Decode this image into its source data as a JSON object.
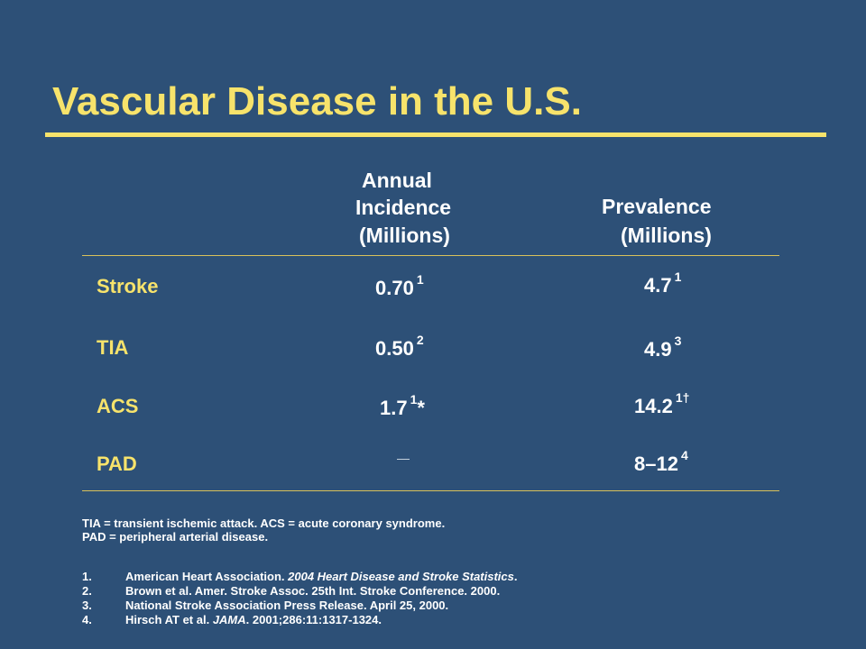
{
  "title": "Vascular Disease in the U.S.",
  "columns": {
    "incidence": [
      "Annual",
      "Incidence",
      "(Millions)"
    ],
    "prevalence": [
      "Prevalence",
      "(Millions)"
    ]
  },
  "rows": [
    {
      "label": "Stroke",
      "incidence": "0.70",
      "incidence_ref": "1",
      "prevalence": "4.7",
      "prevalence_ref": "1"
    },
    {
      "label": "TIA",
      "incidence": "0.50",
      "incidence_ref": "2",
      "prevalence": "4.9",
      "prevalence_ref": "3"
    },
    {
      "label": "ACS",
      "incidence": "1.7",
      "incidence_ref": "1",
      "incidence_suffix": "*",
      "prevalence": "14.2",
      "prevalence_ref": "1†"
    },
    {
      "label": "PAD",
      "incidence": "—",
      "prevalence": "8–12",
      "prevalence_ref": "4"
    }
  ],
  "definitions": [
    "TIA = transient ischemic attack. ACS = acute coronary syndrome.",
    "PAD = peripheral arterial disease."
  ],
  "references": [
    {
      "num": "1.",
      "pre": "American Heart Association. ",
      "italic": "2004 Heart Disease and Stroke Statistics",
      "post": "."
    },
    {
      "num": "2.",
      "pre": "Brown et al. Amer. Stroke Assoc. 25th Int. Stroke Conference. 2000.",
      "italic": "",
      "post": ""
    },
    {
      "num": "3.",
      "pre": "National Stroke Association Press Release. April 25, 2000.",
      "italic": "",
      "post": ""
    },
    {
      "num": "4.",
      "pre": "Hirsch AT et al. ",
      "italic": "JAMA",
      "post": ". 2001;286:11:1317-1324."
    }
  ],
  "colors": {
    "background": "#2d5077",
    "accent": "#f7e36b",
    "text": "#ffffff"
  }
}
